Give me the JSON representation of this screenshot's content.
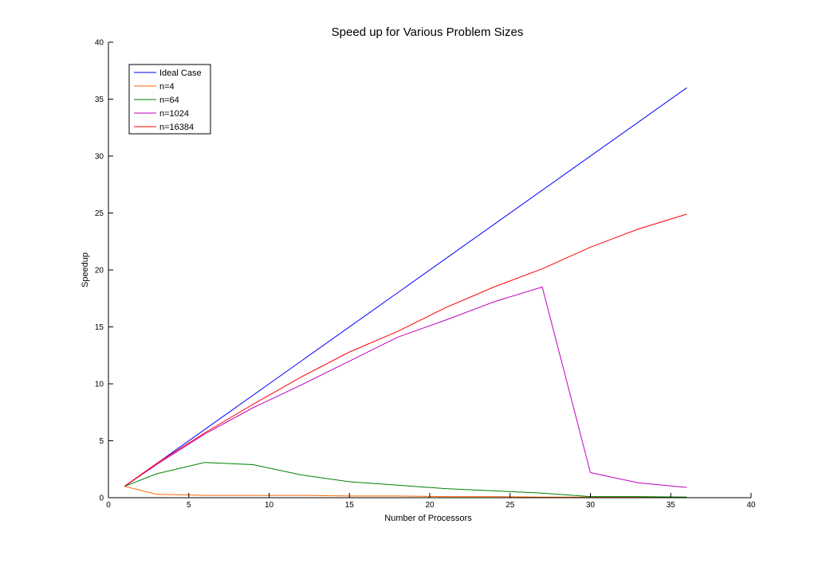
{
  "chart_data": {
    "type": "line",
    "title": "Speed up for Various Problem Sizes",
    "xlabel": "Number of Processors",
    "ylabel": "Speedup",
    "xlim": [
      0,
      40
    ],
    "ylim": [
      0,
      40
    ],
    "xticks": [
      0,
      5,
      10,
      15,
      20,
      25,
      30,
      35,
      40
    ],
    "yticks": [
      0,
      5,
      10,
      15,
      20,
      25,
      30,
      35,
      40
    ],
    "grid": false,
    "legend_position": "top-left",
    "series": [
      {
        "name": "Ideal Case",
        "color": "#0000ff",
        "x": [
          1,
          36
        ],
        "y": [
          1,
          36
        ]
      },
      {
        "name": "n=4",
        "color": "#ff6600",
        "x": [
          1,
          3,
          6,
          9,
          12,
          15,
          18,
          21,
          24,
          27,
          30,
          33,
          36
        ],
        "y": [
          1,
          0.3,
          0.2,
          0.2,
          0.2,
          0.15,
          0.15,
          0.1,
          0.1,
          0.05,
          0.05,
          0.05,
          0.05
        ]
      },
      {
        "name": "n=64",
        "color": "#008000",
        "x": [
          1,
          3,
          6,
          9,
          12,
          15,
          18,
          21,
          24,
          27,
          30,
          33,
          36
        ],
        "y": [
          1,
          2.1,
          3.1,
          2.9,
          2.0,
          1.4,
          1.1,
          0.8,
          0.6,
          0.4,
          0.1,
          0.1,
          0.05
        ]
      },
      {
        "name": "n=1024",
        "color": "#bf00bf",
        "x": [
          1,
          3,
          6,
          9,
          12,
          15,
          18,
          21,
          24,
          27,
          30,
          33,
          36
        ],
        "y": [
          1,
          2.9,
          5.6,
          7.9,
          9.9,
          12.0,
          14.1,
          15.6,
          17.2,
          18.5,
          2.2,
          1.3,
          0.9
        ]
      },
      {
        "name": "n=16384",
        "color": "#ff0000",
        "x": [
          1,
          3,
          6,
          9,
          12,
          15,
          18,
          21,
          24,
          27,
          30,
          33,
          36
        ],
        "y": [
          1,
          3.0,
          5.7,
          8.2,
          10.6,
          12.8,
          14.6,
          16.7,
          18.5,
          20.1,
          22.0,
          23.6,
          24.9
        ]
      }
    ]
  }
}
